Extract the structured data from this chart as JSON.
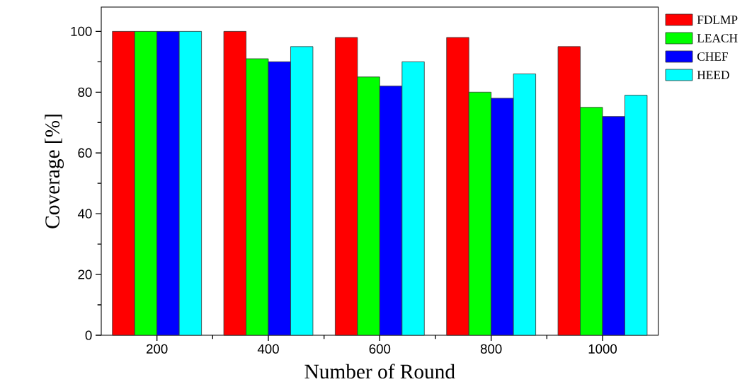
{
  "chart_data": {
    "type": "bar",
    "xlabel": "Number of Round",
    "ylabel": "Coverage [%]",
    "categories": [
      "200",
      "400",
      "600",
      "800",
      "1000"
    ],
    "series": [
      {
        "name": "FDLMP",
        "color": "#ff0000",
        "values": [
          100,
          100,
          98,
          98,
          95
        ]
      },
      {
        "name": "LEACH",
        "color": "#00ff00",
        "values": [
          100,
          91,
          85,
          80,
          75
        ]
      },
      {
        "name": "CHEF",
        "color": "#0000ff",
        "values": [
          100,
          90,
          82,
          78,
          72
        ]
      },
      {
        "name": "HEED",
        "color": "#00ffff",
        "values": [
          100,
          95,
          90,
          86,
          79
        ]
      }
    ],
    "ylim": [
      0,
      108
    ],
    "yticks": [
      0,
      20,
      40,
      60,
      80,
      100
    ],
    "grid": false,
    "legend": "top right"
  }
}
